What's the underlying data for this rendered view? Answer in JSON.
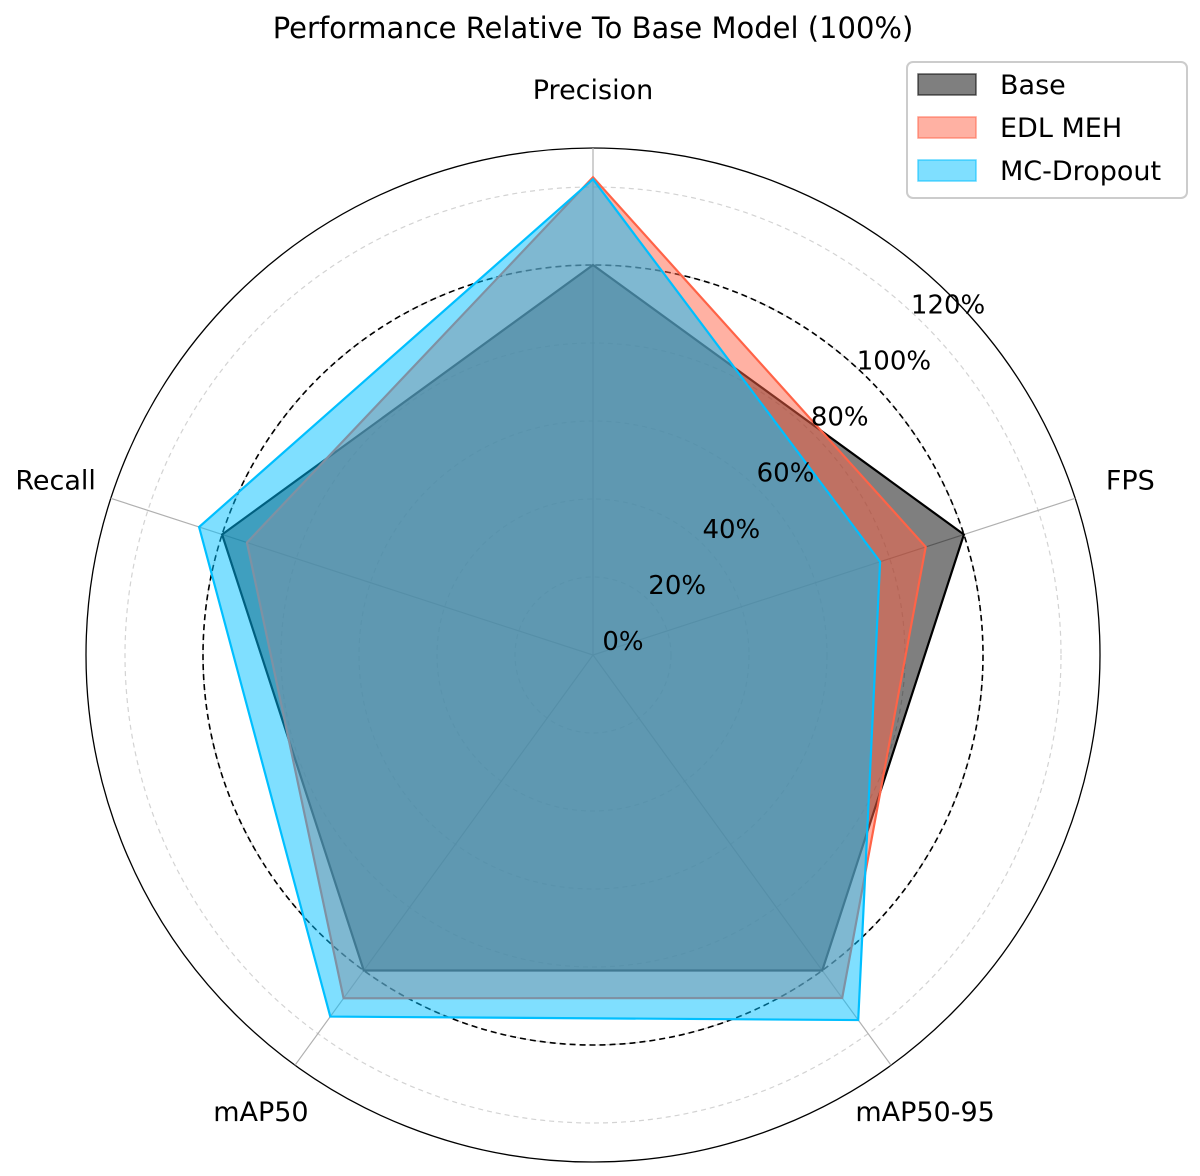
{
  "chart_data": {
    "type": "radar",
    "title": "Performance Relative To Base Model (100%)",
    "categories": [
      "Precision",
      "FPS",
      "mAP50-95",
      "mAP50",
      "Recall"
    ],
    "radial_ticks": [
      0,
      20,
      40,
      60,
      80,
      100,
      120
    ],
    "radial_tick_labels": [
      "0%",
      "20%",
      "40%",
      "60%",
      "80%",
      "100%",
      "120%"
    ],
    "rlim": [
      0,
      130
    ],
    "reference_circle": 100,
    "grid": true,
    "legend_position": "top-right",
    "series": [
      {
        "name": "Base",
        "color": "#000000",
        "values": [
          100,
          100,
          100,
          100,
          100
        ]
      },
      {
        "name": "EDL MEH",
        "color": "#FF6347",
        "values": [
          122.5,
          89.7,
          108.7,
          108.8,
          93.3
        ]
      },
      {
        "name": "MC-Dropout",
        "color": "#00BFFF",
        "values": [
          122,
          77.4,
          115.7,
          114.6,
          106.2
        ]
      }
    ]
  }
}
